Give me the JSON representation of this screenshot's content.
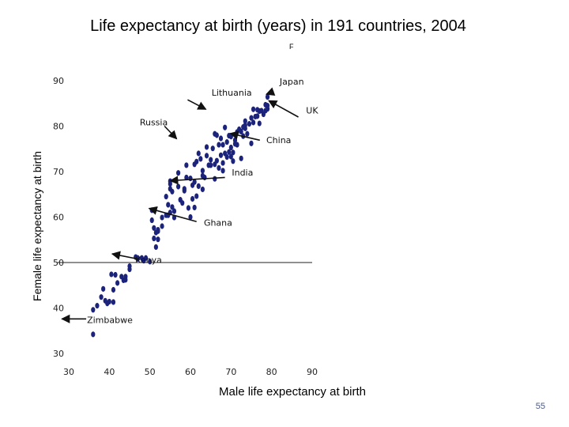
{
  "slide": {
    "title": "Life expectancy at birth (years) in 191 countries, 2004",
    "subtitle": "F",
    "page_number": "55"
  },
  "chart_data": {
    "type": "scatter",
    "title": "Life expectancy at birth (years) in 191 countries, 2004",
    "xlabel": "Male life expectancy at birth",
    "ylabel": "Female life expectancy at birth",
    "xlim": [
      30,
      90
    ],
    "ylim": [
      30,
      90
    ],
    "xticks": [
      "30",
      "40",
      "50",
      "60",
      "70",
      "80",
      "90"
    ],
    "yticks": [
      "90",
      "80",
      "70",
      "60",
      "50",
      "40",
      "30"
    ],
    "grid": false,
    "marker_color": "#1c237a",
    "reference_line_y": 50,
    "points": [
      [
        36,
        34.2
      ],
      [
        36,
        39.6
      ],
      [
        37,
        40.5
      ],
      [
        38,
        42.4
      ],
      [
        38.5,
        44.2
      ],
      [
        39.5,
        41
      ],
      [
        40,
        41.4
      ],
      [
        40.5,
        47.4
      ],
      [
        41,
        41.3
      ],
      [
        41,
        44
      ],
      [
        41.5,
        47.3
      ],
      [
        42,
        45.5
      ],
      [
        43,
        46.9
      ],
      [
        43.5,
        46.1
      ],
      [
        44,
        46.2
      ],
      [
        45,
        49.2
      ],
      [
        45,
        48.5
      ],
      [
        46.5,
        51.2
      ],
      [
        47,
        51
      ],
      [
        48,
        51
      ],
      [
        48.5,
        50.4
      ],
      [
        50,
        50.2
      ],
      [
        51,
        55.3
      ],
      [
        51.5,
        53.4
      ],
      [
        51.5,
        56.6
      ],
      [
        52,
        55.1
      ],
      [
        52,
        56.9
      ],
      [
        53,
        58
      ],
      [
        50.5,
        61.5
      ],
      [
        50.5,
        59.3
      ],
      [
        51,
        57.6
      ],
      [
        54,
        60.4
      ],
      [
        54.5,
        62.7
      ],
      [
        54.5,
        60.4
      ],
      [
        55,
        61
      ],
      [
        55.5,
        62.2
      ],
      [
        56,
        61.3
      ],
      [
        56,
        59.9
      ],
      [
        55,
        66.2
      ],
      [
        55,
        67.3
      ],
      [
        55.5,
        65.6
      ],
      [
        57,
        66.7
      ],
      [
        57.5,
        63.8
      ],
      [
        58,
        63.1
      ],
      [
        58.5,
        65.8
      ],
      [
        59,
        68.7
      ],
      [
        59.5,
        62
      ],
      [
        60,
        60
      ],
      [
        60.5,
        64
      ],
      [
        60.5,
        67
      ],
      [
        61,
        62.1
      ],
      [
        61.5,
        64.6
      ],
      [
        61,
        67.7
      ],
      [
        62,
        66.8
      ],
      [
        62.5,
        72.8
      ],
      [
        61.5,
        72.2
      ],
      [
        63,
        66.1
      ],
      [
        63,
        70.2
      ],
      [
        63.5,
        68.7
      ],
      [
        64,
        73.5
      ],
      [
        64.5,
        71.4
      ],
      [
        65,
        71.4
      ],
      [
        65,
        72.6
      ],
      [
        65.5,
        75.1
      ],
      [
        66,
        68.4
      ],
      [
        66,
        71.6
      ],
      [
        66.5,
        72.4
      ],
      [
        67,
        75.9
      ],
      [
        67,
        70.8
      ],
      [
        67.5,
        73.6
      ],
      [
        68,
        75.9
      ],
      [
        68,
        71.9
      ],
      [
        68.5,
        74
      ],
      [
        69,
        73.2
      ],
      [
        69,
        76.5
      ],
      [
        69.5,
        74.3
      ],
      [
        70,
        77.7
      ],
      [
        70,
        75.3
      ],
      [
        70,
        73.3
      ],
      [
        70.5,
        74.2
      ],
      [
        71,
        76.1
      ],
      [
        71.5,
        78.7
      ],
      [
        71.5,
        75.9
      ],
      [
        72,
        79.3
      ],
      [
        72.5,
        78.8
      ],
      [
        73,
        77.8
      ],
      [
        73.5,
        79.5
      ],
      [
        73.5,
        80.2
      ],
      [
        74,
        78.3
      ],
      [
        74.5,
        80.5
      ],
      [
        75,
        81.8
      ],
      [
        75.5,
        80.8
      ],
      [
        76,
        82.1
      ],
      [
        76.5,
        82.2
      ],
      [
        77,
        83.3
      ],
      [
        77.5,
        83.4
      ],
      [
        78,
        82.6
      ],
      [
        78.5,
        84.7
      ],
      [
        78.5,
        83.4
      ],
      [
        79,
        83.8
      ],
      [
        79,
        86.4
      ],
      [
        79,
        84.5
      ],
      [
        73,
        79.8
      ],
      [
        71,
        76.9
      ],
      [
        67.5,
        77.3
      ],
      [
        66,
        78.3
      ],
      [
        68,
        70.2
      ],
      [
        61,
        71.6
      ],
      [
        60,
        68.5
      ],
      [
        59,
        71.4
      ],
      [
        57,
        69.7
      ],
      [
        55,
        67.9
      ],
      [
        54,
        64.5
      ],
      [
        53,
        59.9
      ],
      [
        52,
        57.2
      ],
      [
        49,
        51
      ],
      [
        47,
        50.8
      ],
      [
        44,
        46.9
      ],
      [
        39,
        41.6
      ],
      [
        75,
        76.2
      ],
      [
        72.5,
        72.9
      ],
      [
        70.5,
        72.3
      ],
      [
        69.5,
        77.9
      ],
      [
        68.5,
        79.7
      ],
      [
        66.5,
        78
      ],
      [
        64,
        75.4
      ],
      [
        63,
        69.1
      ],
      [
        58.5,
        66.2
      ],
      [
        62,
        74
      ],
      [
        77,
        80.6
      ],
      [
        75.5,
        83.7
      ],
      [
        76.5,
        83.6
      ],
      [
        73.5,
        81.1
      ]
    ],
    "annotations": [
      {
        "label": "Japan",
        "text_x": 82,
        "text_y": 89.1,
        "arrow": {
          "from": [
            80.5,
            87.6
          ],
          "to": [
            78.7,
            87.0
          ]
        }
      },
      {
        "label": "Lithuania",
        "text_x": 65.2,
        "text_y": 86.7,
        "arrow": {
          "from": [
            59.3,
            85.8
          ],
          "to": [
            63.8,
            83.7
          ]
        }
      },
      {
        "label": "UK",
        "text_x": 88.5,
        "text_y": 82.8,
        "arrow": {
          "from": [
            86.6,
            82.0
          ],
          "to": [
            79.3,
            85.6
          ]
        }
      },
      {
        "label": "Russia",
        "text_x": 47.5,
        "text_y": 80.2,
        "arrow": {
          "from": [
            53.6,
            80.0
          ],
          "to": [
            56.6,
            77.2
          ]
        }
      },
      {
        "label": "China",
        "text_x": 78.7,
        "text_y": 76.3,
        "arrow": {
          "from": [
            77.1,
            76.9
          ],
          "to": [
            69.8,
            78.4
          ]
        }
      },
      {
        "label": "India",
        "text_x": 70.2,
        "text_y": 69.1,
        "arrow": {
          "from": [
            68.5,
            68.7
          ],
          "to": [
            55.0,
            68.0
          ]
        }
      },
      {
        "label": "Ghana",
        "text_x": 63.3,
        "text_y": 58.1,
        "arrow": {
          "from": [
            61.5,
            59.0
          ],
          "to": [
            49.8,
            61.9
          ]
        }
      },
      {
        "label": "Kenya",
        "text_x": 46.4,
        "text_y": 49.9,
        "arrow": {
          "from": [
            47.5,
            50.7
          ],
          "to": [
            40.7,
            51.9
          ]
        }
      },
      {
        "label": "Zimbabwe",
        "text_x": 34.5,
        "text_y": 36.7,
        "arrow": {
          "from": [
            34.3,
            37.6
          ],
          "to": [
            28.3,
            37.6
          ]
        }
      }
    ]
  }
}
